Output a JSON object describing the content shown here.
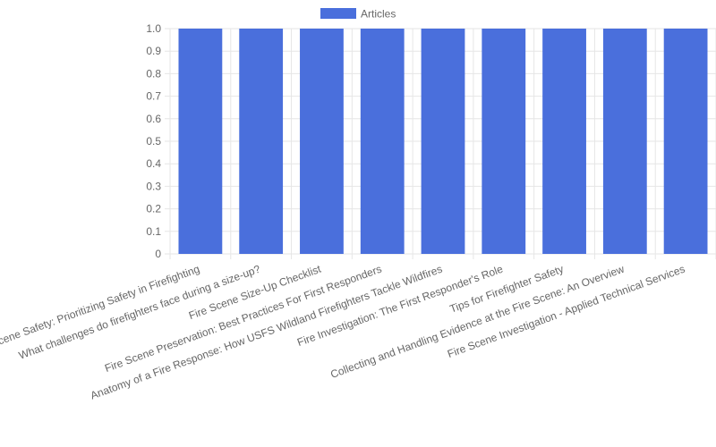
{
  "chart_data": {
    "type": "bar",
    "categories": [
      "Scene Safety: Prioritizing Safety in Firefighting",
      "What challenges do firefighters face during a size-up?",
      "Fire Scene Size-Up Checklist",
      "Fire Scene Preservation: Best Practices For First Responders",
      "Anatomy of a Fire Response: How USFS Wildland Firefighters Tackle Wildfires",
      "Fire Investigation: The First Responder's Role",
      "Tips for Firefighter Safety",
      "Collecting and Handling Evidence at the Fire Scene: An Overview",
      "Fire Scene Investigation - Applied Technical Services"
    ],
    "series": [
      {
        "name": "Articles",
        "values": [
          1,
          1,
          1,
          1,
          1,
          1,
          1,
          1,
          1
        ],
        "color": "#4a6fdc"
      }
    ],
    "yticks": [
      "0",
      "0.1",
      "0.2",
      "0.3",
      "0.4",
      "0.5",
      "0.6",
      "0.7",
      "0.8",
      "0.9",
      "1.0"
    ],
    "ylim": [
      0,
      1
    ],
    "grid": true,
    "legend": "top-center"
  }
}
